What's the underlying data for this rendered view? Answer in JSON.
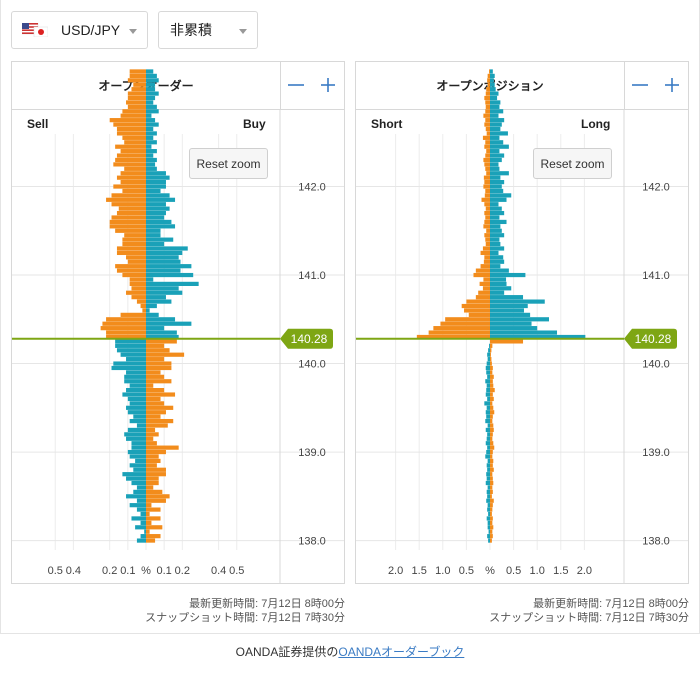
{
  "controls": {
    "pair_label": "USD/JPY",
    "mode_label": "非累積"
  },
  "colors": {
    "orange": "#f28c1c",
    "blue": "#1aa1b8",
    "price_line": "#7ea614",
    "price_tag_bg": "#7ea614",
    "zoom_accent": "#3a7bc4"
  },
  "panels": [
    {
      "title": "オープンオーダー",
      "left_label": "Sell",
      "right_label": "Buy",
      "reset_label": "Reset zoom",
      "price_tag": "140.28",
      "footer_line1": "最新更新時間: 7月12日 8時00分",
      "footer_line2": "スナップショット時間: 7月12日 7時30分"
    },
    {
      "title": "オープンポジション",
      "left_label": "Short",
      "right_label": "Long",
      "reset_label": "Reset zoom",
      "price_tag": "140.28",
      "footer_line1": "最新更新時間: 7月12日 8時00分",
      "footer_line2": "スナップショット時間: 7月12日 7時30分"
    }
  ],
  "credit": {
    "prefix": "OANDA証券提供の",
    "link": "OANDAオーダーブック"
  },
  "chart_data": [
    {
      "type": "bar",
      "title": "オープンオーダー",
      "orientation": "horizontal-butterfly",
      "y_axis": "price",
      "ylim": [
        137.95,
        142.65
      ],
      "y_ticks": [
        "142.0",
        "141.0",
        "140.0",
        "139.0",
        "138.0"
      ],
      "x_ticks_left": [
        "0.5",
        "0.4",
        "0.2",
        "0.1"
      ],
      "x_center_label": "%",
      "x_ticks_right": [
        "0.1",
        "0.2",
        "0.4",
        "0.5"
      ],
      "xlim": [
        -0.65,
        0.65
      ],
      "current_price": 140.28,
      "grid": true,
      "price_start": 138.0,
      "price_step": 0.05,
      "series": [
        {
          "name": "Sell",
          "side": "left",
          "above_price_color": "orange",
          "below_price_color": "blue",
          "values": [
            0.05,
            0.03,
            0.01,
            0.06,
            0.03,
            0.08,
            0.03,
            0.05,
            0.09,
            0.05,
            0.11,
            0.07,
            0.05,
            0.08,
            0.11,
            0.13,
            0.07,
            0.09,
            0.06,
            0.09,
            0.1,
            0.08,
            0.08,
            0.11,
            0.12,
            0.1,
            0.05,
            0.09,
            0.07,
            0.1,
            0.11,
            0.09,
            0.1,
            0.13,
            0.11,
            0.09,
            0.12,
            0.12,
            0.11,
            0.19,
            0.18,
            0.11,
            0.14,
            0.16,
            0.17,
            0.17,
            0.22,
            0.22,
            0.25,
            0.24,
            0.22,
            0.14,
            0.02,
            0.03,
            0.05,
            0.08,
            0.11,
            0.08,
            0.09,
            0.09,
            0.13,
            0.16,
            0.17,
            0.1,
            0.11,
            0.16,
            0.16,
            0.13,
            0.13,
            0.12,
            0.17,
            0.2,
            0.2,
            0.19,
            0.16,
            0.15,
            0.19,
            0.22,
            0.19,
            0.13,
            0.18,
            0.14,
            0.16,
            0.14,
            0.12,
            0.18,
            0.17,
            0.16,
            0.14,
            0.17,
            0.12,
            0.13,
            0.16,
            0.16,
            0.18,
            0.2,
            0.14,
            0.13,
            0.1,
            0.11,
            0.1,
            0.1,
            0.08,
            0.07,
            0.1,
            0.09,
            0.09
          ]
        },
        {
          "name": "Buy",
          "side": "right",
          "above_price_color": "blue",
          "below_price_color": "orange",
          "values": [
            0.05,
            0.08,
            0.02,
            0.09,
            0.03,
            0.08,
            0.02,
            0.08,
            0.03,
            0.11,
            0.13,
            0.09,
            0.04,
            0.07,
            0.07,
            0.11,
            0.11,
            0.06,
            0.08,
            0.07,
            0.11,
            0.18,
            0.06,
            0.04,
            0.07,
            0.05,
            0.12,
            0.15,
            0.08,
            0.11,
            0.15,
            0.1,
            0.08,
            0.16,
            0.1,
            0.04,
            0.14,
            0.1,
            0.08,
            0.14,
            0.14,
            0.1,
            0.21,
            0.13,
            0.1,
            0.17,
            0.18,
            0.17,
            0.1,
            0.25,
            0.16,
            0.07,
            0.02,
            0.06,
            0.14,
            0.11,
            0.2,
            0.18,
            0.29,
            0.04,
            0.26,
            0.19,
            0.25,
            0.19,
            0.18,
            0.2,
            0.23,
            0.1,
            0.15,
            0.08,
            0.08,
            0.16,
            0.14,
            0.1,
            0.11,
            0.13,
            0.11,
            0.16,
            0.13,
            0.08,
            0.11,
            0.11,
            0.13,
            0.11,
            0.06,
            0.05,
            0.06,
            0.04,
            0.06,
            0.03,
            0.06,
            0.04,
            0.06,
            0.04,
            0.07,
            0.05,
            0.03,
            0.07,
            0.06,
            0.04,
            0.05,
            0.07,
            0.05,
            0.05,
            0.07,
            0.06,
            0.04
          ]
        }
      ]
    },
    {
      "type": "bar",
      "title": "オープンポジション",
      "orientation": "horizontal-butterfly",
      "y_axis": "price",
      "ylim": [
        137.95,
        142.65
      ],
      "y_ticks": [
        "142.0",
        "141.0",
        "140.0",
        "139.0",
        "138.0"
      ],
      "x_ticks_left": [
        "2.0",
        "1.5",
        "1.0",
        "0.5"
      ],
      "x_center_label": "%",
      "x_ticks_right": [
        "0.5",
        "1.0",
        "1.5",
        "2.0"
      ],
      "xlim": [
        -2.5,
        2.5
      ],
      "current_price": 140.28,
      "grid": true,
      "price_start": 138.0,
      "price_step": 0.05,
      "series": [
        {
          "name": "Short",
          "side": "left",
          "above_price_color": "orange",
          "below_price_color": "blue",
          "values": [
            0.04,
            0.06,
            0.03,
            0.05,
            0.05,
            0.07,
            0.04,
            0.06,
            0.05,
            0.08,
            0.06,
            0.07,
            0.05,
            0.09,
            0.07,
            0.08,
            0.06,
            0.07,
            0.05,
            0.1,
            0.08,
            0.06,
            0.09,
            0.07,
            0.06,
            0.09,
            0.05,
            0.1,
            0.08,
            0.09,
            0.07,
            0.12,
            0.06,
            0.09,
            0.08,
            0.07,
            0.1,
            0.06,
            0.08,
            0.09,
            0.07,
            0.05,
            0.06,
            0.04,
            0.02,
            0.0,
            1.55,
            1.3,
            1.2,
            1.05,
            0.95,
            0.45,
            0.55,
            0.6,
            0.5,
            0.3,
            0.25,
            0.15,
            0.22,
            0.14,
            0.35,
            0.3,
            0.2,
            0.13,
            0.12,
            0.2,
            0.15,
            0.09,
            0.1,
            0.12,
            0.08,
            0.14,
            0.12,
            0.1,
            0.12,
            0.09,
            0.12,
            0.18,
            0.11,
            0.1,
            0.14,
            0.12,
            0.13,
            0.08,
            0.1,
            0.12,
            0.14,
            0.1,
            0.08,
            0.12,
            0.1,
            0.15,
            0.07,
            0.09,
            0.12,
            0.1,
            0.14,
            0.1,
            0.09,
            0.1,
            0.12,
            0.09,
            0.08,
            0.05,
            0.06,
            0.05,
            0.02
          ]
        },
        {
          "name": "Long",
          "side": "right",
          "above_price_color": "blue",
          "below_price_color": "orange",
          "values": [
            0.04,
            0.06,
            0.05,
            0.07,
            0.05,
            0.06,
            0.04,
            0.05,
            0.06,
            0.08,
            0.04,
            0.06,
            0.05,
            0.07,
            0.06,
            0.05,
            0.08,
            0.06,
            0.07,
            0.05,
            0.06,
            0.09,
            0.07,
            0.05,
            0.06,
            0.08,
            0.07,
            0.05,
            0.06,
            0.09,
            0.07,
            0.05,
            0.08,
            0.06,
            0.1,
            0.07,
            0.06,
            0.08,
            0.05,
            0.06,
            0.04,
            0.03,
            0.02,
            0.03,
            0.05,
            0.7,
            2.02,
            1.42,
            1.0,
            0.88,
            1.25,
            0.85,
            0.72,
            0.8,
            1.16,
            0.7,
            0.3,
            0.45,
            0.35,
            0.34,
            0.75,
            0.4,
            0.22,
            0.3,
            0.28,
            0.18,
            0.3,
            0.22,
            0.2,
            0.3,
            0.25,
            0.22,
            0.35,
            0.2,
            0.3,
            0.25,
            0.18,
            0.35,
            0.45,
            0.28,
            0.25,
            0.3,
            0.22,
            0.4,
            0.2,
            0.18,
            0.25,
            0.3,
            0.2,
            0.4,
            0.28,
            0.2,
            0.38,
            0.22,
            0.25,
            0.3,
            0.18,
            0.28,
            0.2,
            0.22,
            0.15,
            0.18,
            0.12,
            0.1,
            0.08,
            0.1,
            0.06
          ]
        }
      ]
    }
  ]
}
